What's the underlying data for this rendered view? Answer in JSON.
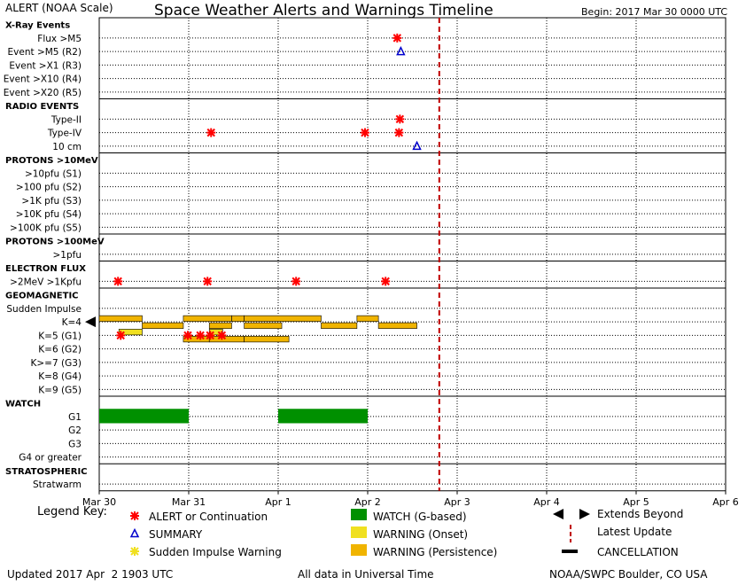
{
  "header": {
    "alert_scale_label": "ALERT (NOAA Scale)",
    "title": "Space Weather Alerts and Warnings Timeline",
    "begin_label": "Begin: 2017 Mar 30 0000 UTC"
  },
  "rows": [
    {
      "label": "X-Ray Events",
      "kind": "header"
    },
    {
      "label": "Flux >M5",
      "kind": "row"
    },
    {
      "label": "Event >M5 (R2)",
      "kind": "row"
    },
    {
      "label": "Event >X1 (R3)",
      "kind": "row"
    },
    {
      "label": "Event >X10 (R4)",
      "kind": "row"
    },
    {
      "label": "Event >X20 (R5)",
      "kind": "row"
    },
    {
      "label": "RADIO EVENTS",
      "kind": "header"
    },
    {
      "label": "Type-II",
      "kind": "row"
    },
    {
      "label": "Type-IV",
      "kind": "row"
    },
    {
      "label": "10 cm",
      "kind": "row"
    },
    {
      "label": "PROTONS >10MeV",
      "kind": "header"
    },
    {
      "label": ">10pfu (S1)",
      "kind": "row"
    },
    {
      "label": ">100 pfu (S2)",
      "kind": "row"
    },
    {
      "label": ">1K pfu (S3)",
      "kind": "row"
    },
    {
      "label": ">10K pfu (S4)",
      "kind": "row"
    },
    {
      "label": ">100K pfu (S5)",
      "kind": "row"
    },
    {
      "label": "PROTONS >100MeV",
      "kind": "header"
    },
    {
      "label": ">1pfu",
      "kind": "row"
    },
    {
      "label": "ELECTRON FLUX",
      "kind": "header"
    },
    {
      "label": ">2MeV >1Kpfu",
      "kind": "row"
    },
    {
      "label": "GEOMAGNETIC",
      "kind": "header"
    },
    {
      "label": "Sudden Impulse",
      "kind": "row"
    },
    {
      "label": "K=4",
      "kind": "row"
    },
    {
      "label": "K=5 (G1)",
      "kind": "row"
    },
    {
      "label": "K=6 (G2)",
      "kind": "row"
    },
    {
      "label": "K>=7 (G3)",
      "kind": "row"
    },
    {
      "label": "K=8 (G4)",
      "kind": "row"
    },
    {
      "label": "K=9 (G5)",
      "kind": "row"
    },
    {
      "label": "WATCH",
      "kind": "header"
    },
    {
      "label": "G1",
      "kind": "row"
    },
    {
      "label": "G2",
      "kind": "row"
    },
    {
      "label": "G3",
      "kind": "row"
    },
    {
      "label": "G4 or greater",
      "kind": "row"
    },
    {
      "label": "STRATOSPHERIC",
      "kind": "header"
    },
    {
      "label": "Stratwarm",
      "kind": "row"
    }
  ],
  "chart_data": {
    "type": "timeline",
    "title": "Space Weather Alerts and Warnings Timeline",
    "x_axis_unit": "days since 2017 Mar 30 0000 UTC",
    "xlim": [
      0,
      7
    ],
    "x_tick_labels": [
      "Mar 30",
      "Mar 31",
      "Apr 1",
      "Apr 2",
      "Apr 3",
      "Apr 4",
      "Apr 5",
      "Apr 6"
    ],
    "latest_update_day": 3.8,
    "alerts": [
      {
        "row": "Flux >M5",
        "day": 3.33
      },
      {
        "row": "Type-II",
        "day": 3.36
      },
      {
        "row": "Type-IV",
        "day": 1.25
      },
      {
        "row": "Type-IV",
        "day": 2.97
      },
      {
        "row": "Type-IV",
        "day": 3.35
      },
      {
        "row": ">2MeV >1Kpfu",
        "day": 0.21
      },
      {
        "row": ">2MeV >1Kpfu",
        "day": 1.21
      },
      {
        "row": ">2MeV >1Kpfu",
        "day": 2.2
      },
      {
        "row": ">2MeV >1Kpfu",
        "day": 3.2
      },
      {
        "row": "K=5 (G1)",
        "day": 0.24
      },
      {
        "row": "K=5 (G1)",
        "day": 0.99
      },
      {
        "row": "K=5 (G1)",
        "day": 1.13
      },
      {
        "row": "K=5 (G1)",
        "day": 1.24
      },
      {
        "row": "K=5 (G1)",
        "day": 1.37
      }
    ],
    "summaries": [
      {
        "row": "Event >M5 (R2)",
        "day": 3.37
      },
      {
        "row": "10 cm",
        "day": 3.55
      }
    ],
    "sudden_impulse_warnings": [],
    "onset_warnings": [
      {
        "row": "K=5 (G1)",
        "start": 0.22,
        "end": 0.48,
        "sub": 0
      },
      {
        "row": "K=5 (G1)",
        "start": 1.23,
        "end": 1.38,
        "sub": 0
      }
    ],
    "persistence_warnings": [
      {
        "row": "K=4",
        "start": -0.2,
        "end": 0.48,
        "sub": 0
      },
      {
        "row": "K=4",
        "start": 0.48,
        "end": 0.94,
        "sub": 1
      },
      {
        "row": "K=4",
        "start": 0.94,
        "end": 1.48,
        "sub": 0
      },
      {
        "row": "K=4",
        "start": 1.23,
        "end": 1.48,
        "sub": 1
      },
      {
        "row": "K=4",
        "start": 1.48,
        "end": 1.62,
        "sub": 0
      },
      {
        "row": "K=4",
        "start": 1.62,
        "end": 2.04,
        "sub": 1
      },
      {
        "row": "K=4",
        "start": 1.62,
        "end": 2.48,
        "sub": 0
      },
      {
        "row": "K=4",
        "start": 2.48,
        "end": 2.88,
        "sub": 1
      },
      {
        "row": "K=4",
        "start": 2.88,
        "end": 3.12,
        "sub": 0
      },
      {
        "row": "K=4",
        "start": 3.12,
        "end": 3.55,
        "sub": 1
      },
      {
        "row": "K=5 (G1)",
        "start": 0.94,
        "end": 1.23,
        "sub": 1
      },
      {
        "row": "K=5 (G1)",
        "start": 1.23,
        "end": 1.62,
        "sub": 1
      },
      {
        "row": "K=5 (G1)",
        "start": 1.62,
        "end": 2.12,
        "sub": 1
      }
    ],
    "watches": [
      {
        "row": "G1",
        "start": 0.0,
        "end": 1.0
      },
      {
        "row": "G1",
        "start": 2.0,
        "end": 3.0
      }
    ],
    "extends_beyond_rows": [
      "K=4"
    ]
  },
  "legend": {
    "title": "Legend Key:",
    "alert": "ALERT or Continuation",
    "summary": "SUMMARY",
    "sudden_impulse": "Sudden Impulse Warning",
    "watch": "WATCH (G-based)",
    "warning_onset": "WARNING (Onset)",
    "warning_persistence": "WARNING (Persistence)",
    "extends_beyond": "Extends Beyond",
    "latest_update": "Latest Update",
    "cancellation": "CANCELLATION"
  },
  "footer": {
    "updated": "Updated 2017 Apr  2 1903 UTC",
    "universal": "All data in Universal Time",
    "credit": "NOAA/SWPC Boulder, CO USA"
  },
  "colors": {
    "alert": "#ff0000",
    "summary": "#0000cc",
    "onset": "#f0e020",
    "persistence": "#f0b400",
    "watch": "#009000",
    "latest_update": "#c00000"
  }
}
